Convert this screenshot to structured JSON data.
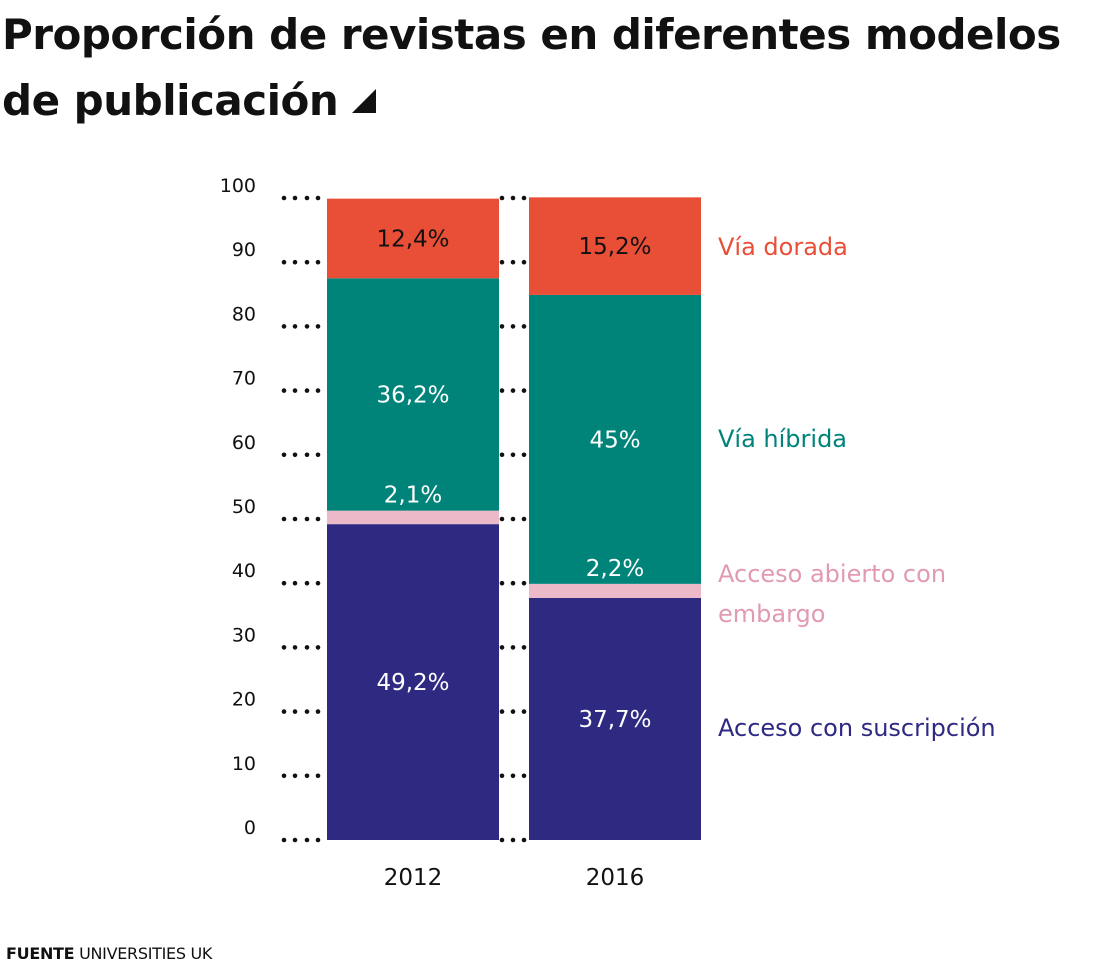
{
  "title": "Proporción de revistas en diferentes modelos de publicación",
  "title_icon": "triangle-corner-icon",
  "source": {
    "label": "FUENTE",
    "text": "UNIVERSITIES UK"
  },
  "chart_data": {
    "type": "bar",
    "stacked": true,
    "title": "Proporción de revistas en diferentes modelos de publicación",
    "xlabel": "",
    "ylabel": "",
    "categories": [
      "2012",
      "2016"
    ],
    "ylim": [
      0,
      100
    ],
    "yticks": [
      0,
      10,
      20,
      30,
      40,
      50,
      60,
      70,
      80,
      90,
      100
    ],
    "grid": "dotted tick leaders",
    "legend": "right, direct labels",
    "series": [
      {
        "name": "Acceso con suscripción",
        "values": [
          49.2,
          37.7
        ],
        "labels": [
          "49,2%",
          "37,7%"
        ],
        "color": "#2e2a82",
        "label_color": "#ffffff"
      },
      {
        "name": "Acceso abierto con embargo",
        "values": [
          2.1,
          2.2
        ],
        "labels": [
          "2,1%",
          "2,2%"
        ],
        "color": "#ecb9c8",
        "label_color": "#ffffff",
        "legend_color": "#e29ab0"
      },
      {
        "name": "Vía híbrida",
        "values": [
          36.2,
          45.0
        ],
        "labels": [
          "36,2%",
          "45%"
        ],
        "color": "#00847a",
        "label_color": "#ffffff"
      },
      {
        "name": "Vía dorada",
        "values": [
          12.4,
          15.2
        ],
        "labels": [
          "12,4%",
          "15,2%"
        ],
        "color": "#e94e37",
        "label_color": "#111111"
      }
    ]
  }
}
